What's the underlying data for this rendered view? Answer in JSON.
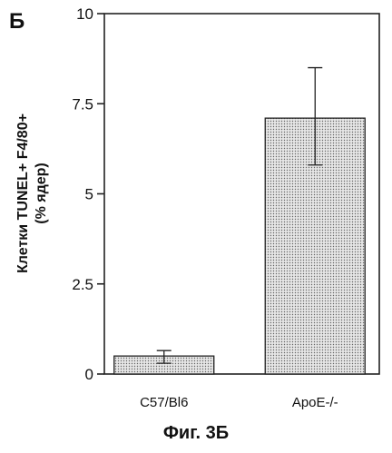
{
  "panel_label": "Б",
  "caption": "Фиг. 3Б",
  "chart_data": {
    "type": "bar",
    "title": "",
    "ylabel_line1": "Клетки TUNEL+ F4/80+",
    "ylabel_line2": "(% ядер)",
    "xlabel": "",
    "categories": [
      "C57/Bl6",
      "ApoE-/-"
    ],
    "values": [
      0.5,
      7.1
    ],
    "error_low": [
      0.3,
      5.8
    ],
    "error_high": [
      0.65,
      8.5
    ],
    "ylim": [
      0,
      10
    ],
    "yticks": [
      0,
      2.5,
      5,
      7.5,
      10
    ],
    "ytick_labels": [
      "0",
      "2.5",
      "5",
      "7.5",
      "10"
    ],
    "grid": false,
    "bar_fill": "dotted-gray"
  }
}
